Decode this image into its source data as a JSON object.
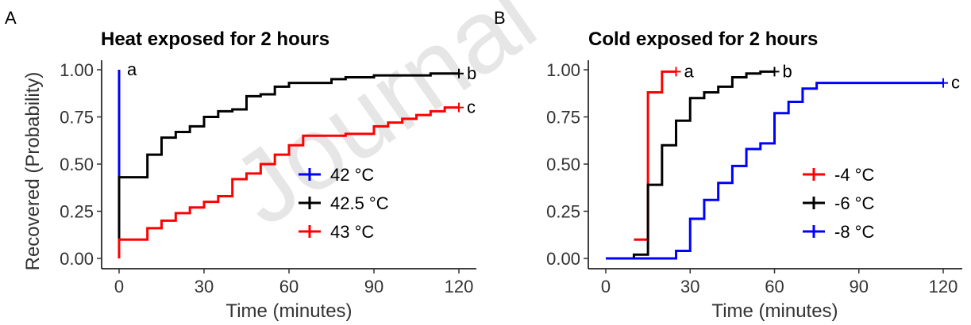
{
  "chart_data": [
    {
      "type": "line",
      "panel_letter": "A",
      "title": "Heat exposed for 2 hours",
      "xlabel": "Time (minutes)",
      "ylabel": "Recovered (Probability)",
      "xlim": [
        0,
        120
      ],
      "ylim": [
        0,
        1
      ],
      "xticks": [
        "0",
        "30",
        "60",
        "90",
        "120"
      ],
      "yticks": [
        "0.00",
        "0.25",
        "0.50",
        "0.75",
        "1.00"
      ],
      "grid": false,
      "legend_position": "bottom-right",
      "series": [
        {
          "name": "42 °C",
          "color": "#0000ff",
          "end_label": "a",
          "censor_mark": false,
          "x": [
            0,
            0,
            0,
            0
          ],
          "y": [
            0,
            0.1,
            0.43,
            1.0
          ]
        },
        {
          "name": "42.5 °C",
          "color": "#000000",
          "end_label": "b",
          "censor_mark": true,
          "x": [
            0,
            0,
            10,
            15,
            20,
            25,
            30,
            35,
            40,
            45,
            50,
            55,
            60,
            70,
            75,
            80,
            90,
            110,
            120
          ],
          "y": [
            0.1,
            0.43,
            0.55,
            0.64,
            0.67,
            0.7,
            0.75,
            0.78,
            0.79,
            0.86,
            0.87,
            0.91,
            0.93,
            0.93,
            0.95,
            0.96,
            0.97,
            0.98,
            0.98
          ]
        },
        {
          "name": "43 °C",
          "color": "#ff0000",
          "end_label": "c",
          "censor_mark": true,
          "x": [
            0,
            0,
            10,
            15,
            20,
            25,
            30,
            35,
            40,
            45,
            50,
            55,
            60,
            65,
            75,
            80,
            90,
            95,
            100,
            105,
            110,
            115,
            120
          ],
          "y": [
            0,
            0.1,
            0.16,
            0.2,
            0.24,
            0.27,
            0.3,
            0.33,
            0.42,
            0.45,
            0.5,
            0.55,
            0.6,
            0.65,
            0.65,
            0.66,
            0.7,
            0.72,
            0.74,
            0.76,
            0.78,
            0.8,
            0.8
          ]
        }
      ]
    },
    {
      "type": "line",
      "panel_letter": "B",
      "title": "Cold exposed for 2 hours",
      "xlabel": "Time (minutes)",
      "ylabel": "",
      "xlim": [
        0,
        120
      ],
      "ylim": [
        0,
        1
      ],
      "xticks": [
        "0",
        "30",
        "60",
        "90",
        "120"
      ],
      "yticks": [
        "0.00",
        "0.25",
        "0.50",
        "0.75",
        "1.00"
      ],
      "grid": false,
      "legend_position": "bottom-right",
      "series": [
        {
          "name": "-4 °C",
          "color": "#ff0000",
          "end_label": "a",
          "censor_mark": true,
          "x": [
            10,
            15,
            20,
            25
          ],
          "y": [
            0.1,
            0.88,
            0.99,
            0.99
          ]
        },
        {
          "name": "-6 °C",
          "color": "#000000",
          "end_label": "b",
          "censor_mark": true,
          "x": [
            0,
            10,
            15,
            20,
            25,
            30,
            35,
            40,
            45,
            50,
            55,
            60
          ],
          "y": [
            0,
            0.02,
            0.39,
            0.6,
            0.73,
            0.85,
            0.88,
            0.91,
            0.96,
            0.98,
            0.99,
            0.99
          ]
        },
        {
          "name": "-8 °C",
          "color": "#0000ff",
          "end_label": "c",
          "censor_mark": true,
          "x": [
            0,
            25,
            30,
            35,
            40,
            45,
            50,
            55,
            60,
            65,
            70,
            75,
            120
          ],
          "y": [
            0,
            0.04,
            0.21,
            0.31,
            0.4,
            0.49,
            0.58,
            0.61,
            0.77,
            0.83,
            0.9,
            0.93,
            0.93
          ]
        }
      ]
    }
  ],
  "watermark": "Journal"
}
